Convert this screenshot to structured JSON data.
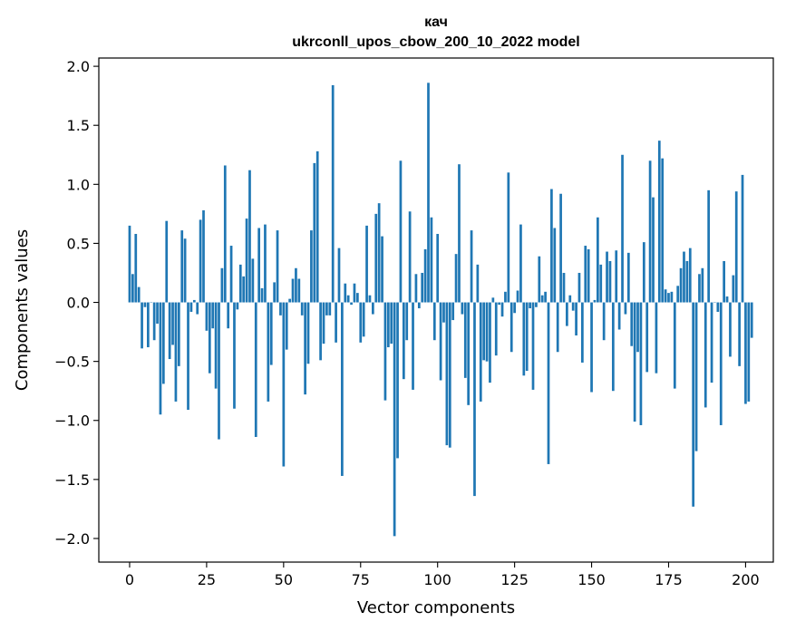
{
  "chart_data": {
    "type": "bar",
    "title": "кач",
    "subtitle": "ukrconll_upos_cbow_200_10_2022 model",
    "xlabel": "Vector components",
    "ylabel": "Components values",
    "xlim": [
      -10,
      209
    ],
    "ylim": [
      -2.2,
      2.07
    ],
    "xticks": [
      0,
      25,
      50,
      75,
      100,
      125,
      150,
      175,
      200
    ],
    "xtick_labels": [
      "0",
      "25",
      "50",
      "75",
      "100",
      "125",
      "150",
      "175",
      "200"
    ],
    "yticks": [
      2.0,
      1.5,
      1.0,
      0.5,
      0.0,
      -0.5,
      -1.0,
      -1.5,
      -2.0
    ],
    "ytick_labels": [
      "2.0",
      "1.5",
      "1.0",
      "0.5",
      "0.0",
      "−0.5",
      "−1.0",
      "−1.5",
      "−2.0"
    ],
    "grid": false,
    "bar_color": "#1f77b4",
    "values": [
      0.65,
      0.24,
      0.58,
      0.13,
      -0.39,
      -0.04,
      -0.38,
      0.0,
      -0.32,
      -0.18,
      -0.95,
      -0.69,
      0.69,
      -0.48,
      -0.36,
      -0.84,
      -0.54,
      0.61,
      0.54,
      -0.91,
      -0.08,
      0.02,
      -0.1,
      0.7,
      0.78,
      -0.24,
      -0.6,
      -0.22,
      -0.73,
      -1.16,
      0.29,
      1.16,
      -0.22,
      0.48,
      -0.9,
      -0.06,
      0.32,
      0.22,
      0.71,
      1.12,
      0.37,
      -1.14,
      0.63,
      0.12,
      0.66,
      -0.84,
      -0.53,
      0.17,
      0.61,
      -0.11,
      -1.39,
      -0.4,
      0.03,
      0.2,
      0.29,
      0.2,
      -0.11,
      -0.78,
      -0.52,
      0.61,
      1.18,
      1.28,
      -0.49,
      -0.35,
      -0.11,
      -0.11,
      1.84,
      -0.34,
      0.46,
      -1.47,
      0.16,
      0.06,
      -0.02,
      0.16,
      0.08,
      -0.34,
      -0.29,
      0.65,
      0.06,
      -0.1,
      0.75,
      0.84,
      0.56,
      -0.83,
      -0.38,
      -0.35,
      -1.98,
      -1.32,
      1.2,
      -0.65,
      -0.32,
      0.77,
      -0.74,
      0.24,
      -0.05,
      0.25,
      0.45,
      1.86,
      0.72,
      -0.32,
      0.58,
      -0.66,
      -0.17,
      -1.21,
      -1.23,
      -0.15,
      0.41,
      1.17,
      -0.1,
      -0.64,
      -0.87,
      0.61,
      -1.64,
      0.32,
      -0.84,
      -0.49,
      -0.5,
      -0.68,
      0.04,
      -0.45,
      -0.02,
      -0.12,
      0.09,
      1.1,
      -0.42,
      -0.09,
      0.1,
      0.66,
      -0.62,
      -0.58,
      -0.05,
      -0.74,
      -0.04,
      0.39,
      0.06,
      0.09,
      -1.37,
      0.96,
      0.63,
      -0.42,
      0.92,
      0.25,
      -0.2,
      0.06,
      -0.07,
      -0.28,
      0.25,
      -0.51,
      0.48,
      0.45,
      -0.76,
      0.02,
      0.72,
      0.32,
      -0.32,
      0.43,
      0.35,
      -0.75,
      0.44,
      -0.23,
      1.25,
      -0.1,
      0.42,
      -0.37,
      -1.01,
      -0.42,
      -1.04,
      0.51,
      -0.59,
      1.2,
      0.89,
      -0.6,
      1.37,
      1.22,
      0.11,
      0.08,
      0.09,
      -0.73,
      0.14,
      0.29,
      0.43,
      0.35,
      0.46,
      -1.73,
      -1.26,
      0.24,
      0.29,
      -0.89,
      0.95,
      -0.68,
      0.0,
      -0.08,
      -1.04,
      0.35,
      0.05,
      -0.46,
      0.23,
      0.94,
      -0.54,
      1.08,
      -0.86,
      -0.84,
      -0.3
    ]
  }
}
